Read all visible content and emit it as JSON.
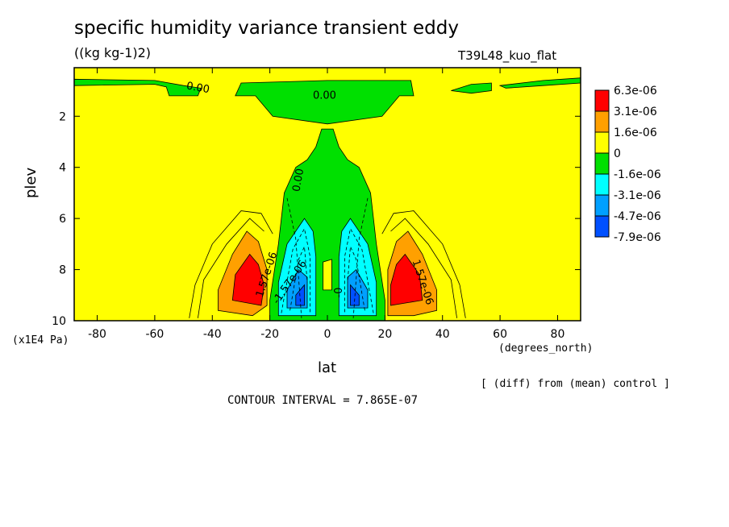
{
  "header": {
    "title": "specific humidity variance transient eddy",
    "units": "((kg kg-1)2)",
    "experiment": "T39L48_kuo_flat"
  },
  "footer": {
    "contour_interval": "CONTOUR INTERVAL = 7.865E-07",
    "diff_note": "[ (diff) from (mean) control ]"
  },
  "chart_data": {
    "type": "heatmap",
    "title": "specific humidity variance transient eddy",
    "xlabel": "lat",
    "ylabel": "plev",
    "xunit": "(degrees_north)",
    "yunit": "(x1E4 Pa)",
    "xlim": [
      -88,
      88
    ],
    "ylim": [
      10,
      0.1
    ],
    "xticks": [
      -80,
      -60,
      -40,
      -20,
      0,
      20,
      40,
      60,
      80
    ],
    "xtick_labels": [
      "-80",
      "-60",
      "-40",
      "-20",
      "0",
      "20",
      "40",
      "60",
      "80"
    ],
    "yticks": [
      2,
      4,
      6,
      8,
      10
    ],
    "ytick_labels": [
      "2",
      "4",
      "6",
      "8",
      "10"
    ],
    "legend": {
      "placement": "right",
      "colors": [
        "#ff0000",
        "#ffa000",
        "#ffff00",
        "#00e000",
        "#00ffff",
        "#00a0ff",
        "#0050ff"
      ],
      "labels": [
        "6.3e-06",
        "3.1e-06",
        "1.6e-06",
        "0",
        "-1.6e-06",
        "-3.1e-06",
        "-4.7e-06",
        "-7.9e-06"
      ]
    },
    "contour_labels": [
      {
        "text": "0.00",
        "lat": -45,
        "plev": 0.9,
        "angle": 10
      },
      {
        "text": "0.00",
        "lat": -1,
        "plev": 1.2,
        "angle": 0
      },
      {
        "text": "0.00",
        "lat": -10,
        "plev": 4.5,
        "angle": -80
      },
      {
        "text": "1.57e-06",
        "lat": 33,
        "plev": 8.5,
        "angle": 72
      },
      {
        "text": "1.57e-06",
        "lat": -21,
        "plev": 8.2,
        "angle": -72
      },
      {
        "text": "-1.57e-06",
        "lat": -13,
        "plev": 8.5,
        "angle": -55
      },
      {
        "text": "-0",
        "lat": 4,
        "plev": 8.9,
        "angle": -90
      }
    ],
    "regions": {
      "green_top_left": [
        [
          -88,
          0.55
        ],
        [
          -88,
          0.8
        ],
        [
          -60,
          0.75
        ],
        [
          -56,
          0.85
        ],
        [
          -55,
          1.2
        ],
        [
          -45,
          1.2
        ],
        [
          -44,
          0.9
        ],
        [
          -50,
          0.8
        ],
        [
          -60,
          0.6
        ]
      ],
      "green_top_mid": [
        [
          -30,
          0.7
        ],
        [
          -32,
          1.2
        ],
        [
          -25,
          1.2
        ],
        [
          -19,
          2.0
        ],
        [
          0,
          2.3
        ],
        [
          19,
          2.0
        ],
        [
          25,
          1.2
        ],
        [
          30,
          1.2
        ],
        [
          29,
          0.6
        ],
        [
          0,
          0.6
        ]
      ],
      "green_top_right": [
        [
          43,
          1.0
        ],
        [
          50,
          0.75
        ],
        [
          57,
          0.7
        ],
        [
          57,
          1.0
        ],
        [
          50,
          1.1
        ]
      ],
      "green_top_right2": [
        [
          60,
          0.8
        ],
        [
          75,
          0.6
        ],
        [
          88,
          0.5
        ],
        [
          88,
          0.7
        ],
        [
          75,
          0.8
        ],
        [
          62,
          0.9
        ]
      ],
      "green_column": [
        [
          -20,
          10
        ],
        [
          -20,
          9.2
        ],
        [
          -17,
          7.0
        ],
        [
          -15,
          5.0
        ],
        [
          -11,
          4.0
        ],
        [
          -7,
          3.7
        ],
        [
          -4,
          3.2
        ],
        [
          -2,
          2.5
        ],
        [
          2,
          2.5
        ],
        [
          4,
          3.2
        ],
        [
          7,
          3.7
        ],
        [
          11,
          4.0
        ],
        [
          15,
          5.0
        ],
        [
          17,
          7.0
        ],
        [
          20,
          9.2
        ],
        [
          20,
          10
        ]
      ],
      "cyan_left": [
        [
          -17,
          9.8
        ],
        [
          -17,
          8.5
        ],
        [
          -14,
          7.0
        ],
        [
          -8,
          6.0
        ],
        [
          -5,
          6.5
        ],
        [
          -4,
          7.5
        ],
        [
          -4,
          9.8
        ]
      ],
      "cyan_right": [
        [
          4,
          9.8
        ],
        [
          4,
          7.5
        ],
        [
          5,
          6.5
        ],
        [
          8,
          6.0
        ],
        [
          14,
          7.0
        ],
        [
          17,
          8.5
        ],
        [
          17,
          9.8
        ]
      ],
      "blue_left": [
        [
          -14,
          9.5
        ],
        [
          -14,
          8.8
        ],
        [
          -10,
          8.0
        ],
        [
          -7,
          8.3
        ],
        [
          -7,
          9.5
        ]
      ],
      "blue_right": [
        [
          7,
          9.5
        ],
        [
          7,
          8.3
        ],
        [
          10,
          8.0
        ],
        [
          14,
          8.8
        ],
        [
          14,
          9.5
        ]
      ],
      "dblue_left": [
        [
          -11,
          9.4
        ],
        [
          -11,
          9.0
        ],
        [
          -8,
          8.6
        ],
        [
          -8,
          9.4
        ]
      ],
      "dblue_right": [
        [
          8,
          9.4
        ],
        [
          8,
          8.6
        ],
        [
          11,
          9.0
        ],
        [
          11,
          9.4
        ]
      ],
      "orange_left": [
        [
          -38,
          9.6
        ],
        [
          -38,
          8.8
        ],
        [
          -33,
          7.4
        ],
        [
          -28,
          6.5
        ],
        [
          -24,
          6.9
        ],
        [
          -21,
          8.0
        ],
        [
          -21,
          9.4
        ],
        [
          -26,
          9.8
        ]
      ],
      "orange_right": [
        [
          21,
          9.8
        ],
        [
          21,
          8.0
        ],
        [
          24,
          6.9
        ],
        [
          28,
          6.5
        ],
        [
          33,
          7.4
        ],
        [
          38,
          8.8
        ],
        [
          38,
          9.6
        ],
        [
          30,
          9.8
        ]
      ],
      "red_left": [
        [
          -33,
          9.2
        ],
        [
          -32,
          8.2
        ],
        [
          -27,
          7.4
        ],
        [
          -24,
          7.8
        ],
        [
          -22,
          8.6
        ],
        [
          -23,
          9.4
        ]
      ],
      "red_right": [
        [
          22,
          9.4
        ],
        [
          22,
          8.6
        ],
        [
          24,
          7.8
        ],
        [
          27,
          7.4
        ],
        [
          32,
          8.2
        ],
        [
          33,
          9.2
        ]
      ],
      "yellow_center": [
        [
          -1.5,
          8.8
        ],
        [
          -1.5,
          7.7
        ],
        [
          1.5,
          7.6
        ],
        [
          1.5,
          8.8
        ]
      ]
    }
  }
}
